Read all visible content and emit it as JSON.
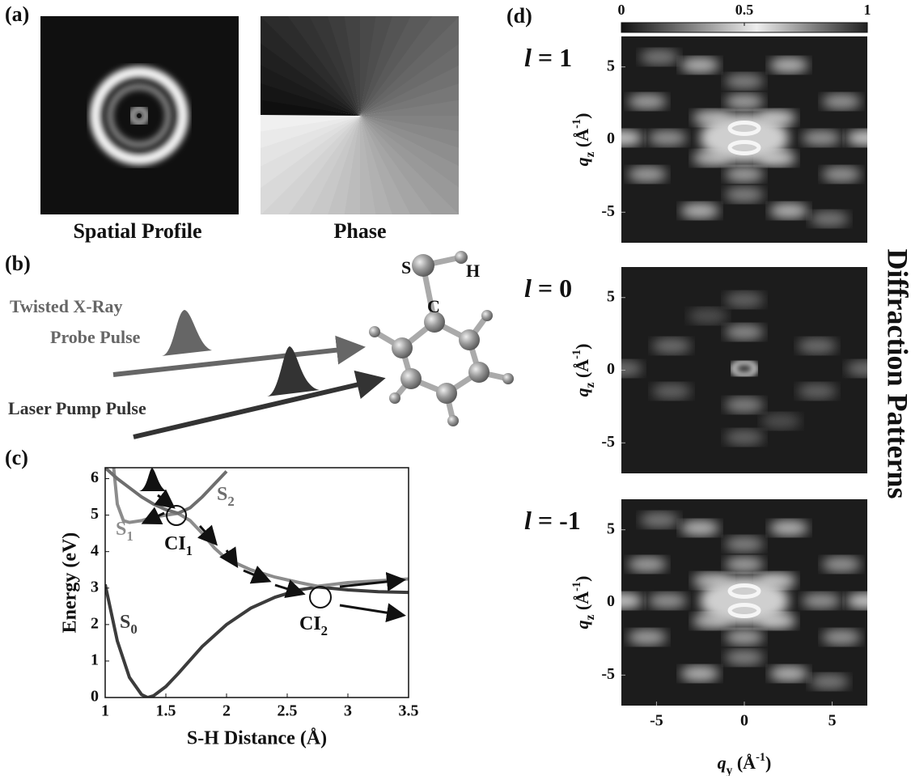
{
  "panel_labels": [
    "(a)",
    "(b)",
    "(c)",
    "(d)"
  ],
  "panel_a": {
    "captions": [
      "Spatial Profile",
      "Phase"
    ]
  },
  "panel_b": {
    "probe_label": [
      "Twisted X-Ray",
      "Probe Pulse"
    ],
    "pump_label": "Laser Pump Pulse",
    "atoms": [
      "S",
      "H",
      "C"
    ]
  },
  "side_title": "Diffraction Patterns",
  "colorbar": {
    "lim": [
      0,
      1
    ],
    "ticks": [
      0,
      0.5,
      1
    ]
  },
  "chart_data": [
    {
      "type": "line",
      "xlabel": "S-H Distance (Å)",
      "ylabel": "Energy (eV)",
      "xlim": [
        1,
        3.5
      ],
      "xticks": [
        1,
        1.5,
        2,
        2.5,
        3,
        3.5
      ],
      "ylim": [
        0,
        6.3
      ],
      "yticks": [
        0,
        1,
        2,
        3,
        4,
        5,
        6
      ],
      "series": [
        {
          "label": [
            "S",
            "0"
          ],
          "color": "#3c3c3c",
          "x": [
            1.0,
            1.1,
            1.2,
            1.3,
            1.35,
            1.4,
            1.5,
            1.6,
            1.8,
            2.0,
            2.2,
            2.4,
            2.6,
            2.75,
            3.0,
            3.25,
            3.5
          ],
          "values": [
            3.1,
            1.55,
            0.55,
            0.08,
            0,
            0.05,
            0.3,
            0.65,
            1.4,
            2.0,
            2.45,
            2.75,
            2.95,
            3.03,
            2.95,
            2.9,
            2.88
          ]
        },
        {
          "label": [
            "S",
            "1"
          ],
          "color": "#8c8c8c",
          "x": [
            1.07,
            1.1,
            1.15,
            1.2,
            1.3,
            1.4,
            1.5,
            1.6,
            1.7,
            1.8,
            1.9,
            2.0,
            2.2,
            2.4,
            2.6,
            2.75,
            3.0,
            3.25,
            3.5
          ],
          "values": [
            6.3,
            5.3,
            4.85,
            4.8,
            4.85,
            4.95,
            5.0,
            5.05,
            4.85,
            4.5,
            4.1,
            3.8,
            3.5,
            3.3,
            3.15,
            3.05,
            3.15,
            3.2,
            3.25
          ]
        },
        {
          "label": [
            "S",
            "2"
          ],
          "color": "#6e6e6e",
          "x": [
            1.0,
            1.1,
            1.2,
            1.3,
            1.4,
            1.5,
            1.6,
            1.7,
            1.8,
            1.9,
            2.0
          ],
          "values": [
            6.3,
            6.0,
            5.75,
            5.5,
            5.3,
            5.15,
            5.05,
            5.2,
            5.5,
            5.85,
            6.2
          ]
        }
      ],
      "annotations": [
        [
          "CI",
          "1"
        ],
        [
          "CI",
          "2"
        ]
      ]
    },
    {
      "type": "heatmap",
      "title": [
        "l",
        " = 1"
      ],
      "ylabel": [
        "q",
        "z",
        " (Å",
        "-1",
        ")"
      ],
      "xlim": [
        -7,
        7
      ],
      "ylim": [
        -7.1,
        7.1
      ],
      "yticks": [
        -5,
        0,
        5
      ]
    },
    {
      "type": "heatmap",
      "title": [
        "l",
        " = 0"
      ],
      "ylabel": [
        "q",
        "z",
        " (Å",
        "-1",
        ")"
      ],
      "xlim": [
        -7,
        7
      ],
      "ylim": [
        -7.1,
        7.1
      ],
      "yticks": [
        -5,
        0,
        5
      ]
    },
    {
      "type": "heatmap",
      "title": [
        "l",
        " = -1"
      ],
      "ylabel": [
        "q",
        "z",
        " (Å",
        "-1",
        ")"
      ],
      "xlabel": [
        "q",
        "y",
        " (Å",
        "-1",
        ")"
      ],
      "xlim": [
        -7,
        7
      ],
      "ylim": [
        -7.1,
        7.1
      ],
      "xticks": [
        -5,
        0,
        5
      ],
      "yticks": [
        -5,
        0,
        5
      ]
    }
  ]
}
